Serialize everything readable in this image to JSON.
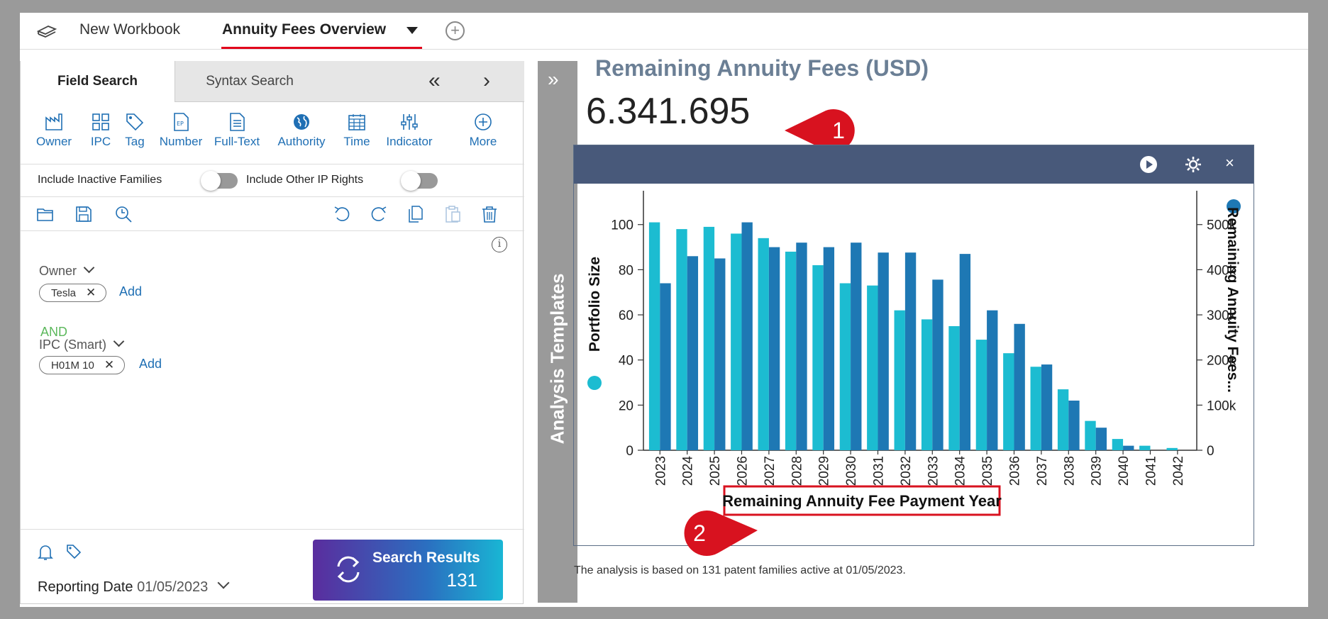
{
  "tabs": {
    "workbook": "New Workbook",
    "active": "Annuity Fees Overview"
  },
  "search_tabs": {
    "field": "Field Search",
    "syntax": "Syntax Search"
  },
  "tools": [
    "Owner",
    "IPC",
    "Tag",
    "Number",
    "Full-Text",
    "Authority",
    "Time",
    "Indicator",
    "More"
  ],
  "toggles": {
    "inactive": "Include Inactive Families",
    "other_ip": "Include Other IP Rights"
  },
  "query": {
    "owner_label": "Owner",
    "owner_chip": "Tesla",
    "add": "Add",
    "and": "AND",
    "ipc_label": "IPC (Smart)",
    "ipc_chip": "H01M 10"
  },
  "footer": {
    "reporting_label": "Reporting Date",
    "reporting_date": "01/05/2023",
    "search_label": "Search Results",
    "search_count": "131"
  },
  "sidebar_label": "Analysis Templates",
  "panel": {
    "title": "Remaining Annuity Fees (USD)",
    "total": "6.341.695",
    "callout1": "1",
    "callout2": "2"
  },
  "footnote": "The analysis is based on 131 patent families active at 01/05/2023.",
  "colors": {
    "series1": "#1cbcd1",
    "series2": "#1e78b4",
    "header": "#48597a",
    "callout": "#d8121f"
  },
  "chart_data": {
    "type": "bar",
    "categories": [
      "2023",
      "2024",
      "2025",
      "2026",
      "2027",
      "2028",
      "2029",
      "2030",
      "2031",
      "2032",
      "2033",
      "2034",
      "2035",
      "2036",
      "2037",
      "2038",
      "2039",
      "2040",
      "2041",
      "2042"
    ],
    "series": [
      {
        "name": "Portfolio Size",
        "axis": "left",
        "values": [
          101,
          98,
          99,
          96,
          94,
          88,
          82,
          74,
          73,
          62,
          58,
          55,
          49,
          43,
          37,
          27,
          13,
          5,
          2,
          1
        ]
      },
      {
        "name": "Remaining Annuity Fees...",
        "axis": "right",
        "values": [
          370000,
          430000,
          425000,
          505000,
          450000,
          460000,
          450000,
          460000,
          438000,
          438000,
          378000,
          435000,
          310000,
          280000,
          190000,
          110000,
          50000,
          10000,
          0,
          0
        ]
      }
    ],
    "xlabel": "Remaining Annuity Fee Payment Year",
    "ylabel_left": "Portfolio Size",
    "ylabel_right": "Remaining Annuity Fees...",
    "yticks_left": [
      "0",
      "20",
      "40",
      "60",
      "80",
      "100"
    ],
    "yticks_right": [
      "0",
      "100k",
      "200k",
      "300k",
      "400k",
      "500k"
    ],
    "ylim_left": [
      0,
      115
    ],
    "ylim_right": [
      0,
      575000
    ]
  }
}
